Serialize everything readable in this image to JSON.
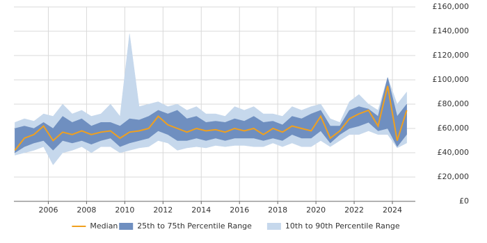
{
  "chart_data": {
    "type": "range-line",
    "x": [
      2004.25,
      2004.75,
      2005.25,
      2005.75,
      2006.25,
      2006.75,
      2007.25,
      2007.75,
      2008.25,
      2008.75,
      2009.25,
      2009.75,
      2010.25,
      2010.75,
      2011.25,
      2011.75,
      2012.25,
      2012.75,
      2013.25,
      2013.75,
      2014.25,
      2014.75,
      2015.25,
      2015.75,
      2016.25,
      2016.75,
      2017.25,
      2017.75,
      2018.25,
      2018.75,
      2019.25,
      2019.75,
      2020.25,
      2020.75,
      2021.25,
      2021.75,
      2022.25,
      2022.75,
      2023.25,
      2023.75,
      2024.25,
      2024.75
    ],
    "xlim": [
      2004.2,
      2025.2
    ],
    "xticks": [
      2006,
      2008,
      2010,
      2012,
      2014,
      2016,
      2018,
      2020,
      2022,
      2024
    ],
    "ylim": [
      0,
      160000
    ],
    "yticks": [
      {
        "value": 0,
        "label": "£0"
      },
      {
        "value": 20000,
        "label": "£20,000"
      },
      {
        "value": 40000,
        "label": "£40,000"
      },
      {
        "value": 60000,
        "label": "£60,000"
      },
      {
        "value": 80000,
        "label": "£80,000"
      },
      {
        "value": 100000,
        "label": "£100,000"
      },
      {
        "value": 120000,
        "label": "£120,000"
      },
      {
        "value": 140000,
        "label": "£140,000"
      },
      {
        "value": 160000,
        "label": "£160,000"
      }
    ],
    "grid": true,
    "legend": "bottom",
    "series": [
      {
        "name": "10th to 90th Percentile Range",
        "color": "#c6d8ec",
        "low": [
          38000,
          40000,
          42000,
          45000,
          30000,
          40000,
          42000,
          45000,
          40000,
          45000,
          45000,
          40000,
          42000,
          44000,
          45000,
          50000,
          48000,
          42000,
          44000,
          45000,
          44000,
          46000,
          45000,
          46000,
          46000,
          45000,
          45000,
          48000,
          45000,
          48000,
          45000,
          45000,
          50000,
          45000,
          50000,
          55000,
          55000,
          58000,
          55000,
          55000,
          44000,
          48000
        ],
        "high": [
          65000,
          68000,
          66000,
          72000,
          70000,
          80000,
          72000,
          75000,
          70000,
          72000,
          80000,
          70000,
          138000,
          78000,
          80000,
          82000,
          78000,
          80000,
          75000,
          78000,
          72000,
          72000,
          70000,
          78000,
          75000,
          78000,
          72000,
          72000,
          70000,
          78000,
          75000,
          78000,
          80000,
          68000,
          65000,
          82000,
          88000,
          80000,
          75000,
          102000,
          80000,
          90000
        ]
      },
      {
        "name": "25th to 75th Percentile Range",
        "color": "#6f8fc0",
        "low": [
          40000,
          45000,
          48000,
          50000,
          42000,
          50000,
          48000,
          50000,
          47000,
          50000,
          52000,
          45000,
          48000,
          50000,
          52000,
          58000,
          55000,
          50000,
          50000,
          52000,
          50000,
          52000,
          50000,
          52000,
          52000,
          52000,
          50000,
          52000,
          50000,
          55000,
          52000,
          52000,
          58000,
          48000,
          55000,
          60000,
          62000,
          65000,
          58000,
          60000,
          45000,
          55000
        ],
        "high": [
          60000,
          62000,
          60000,
          65000,
          60000,
          70000,
          65000,
          68000,
          62000,
          65000,
          65000,
          62000,
          68000,
          67000,
          70000,
          75000,
          72000,
          75000,
          68000,
          70000,
          65000,
          66000,
          65000,
          68000,
          66000,
          70000,
          65000,
          66000,
          63000,
          70000,
          68000,
          72000,
          75000,
          62000,
          62000,
          75000,
          78000,
          76000,
          70000,
          102000,
          70000,
          80000
        ]
      },
      {
        "name": "Median",
        "color": "#f0a01e",
        "values": [
          42000,
          52000,
          55000,
          62000,
          50000,
          57000,
          55000,
          58000,
          55000,
          57000,
          58000,
          52000,
          57000,
          58000,
          60000,
          70000,
          63000,
          60000,
          57000,
          60000,
          58000,
          59000,
          57000,
          60000,
          58000,
          60000,
          55000,
          60000,
          57000,
          62000,
          60000,
          58000,
          70000,
          52000,
          58000,
          68000,
          72000,
          75000,
          62000,
          95000,
          50000,
          75000
        ]
      }
    ]
  }
}
